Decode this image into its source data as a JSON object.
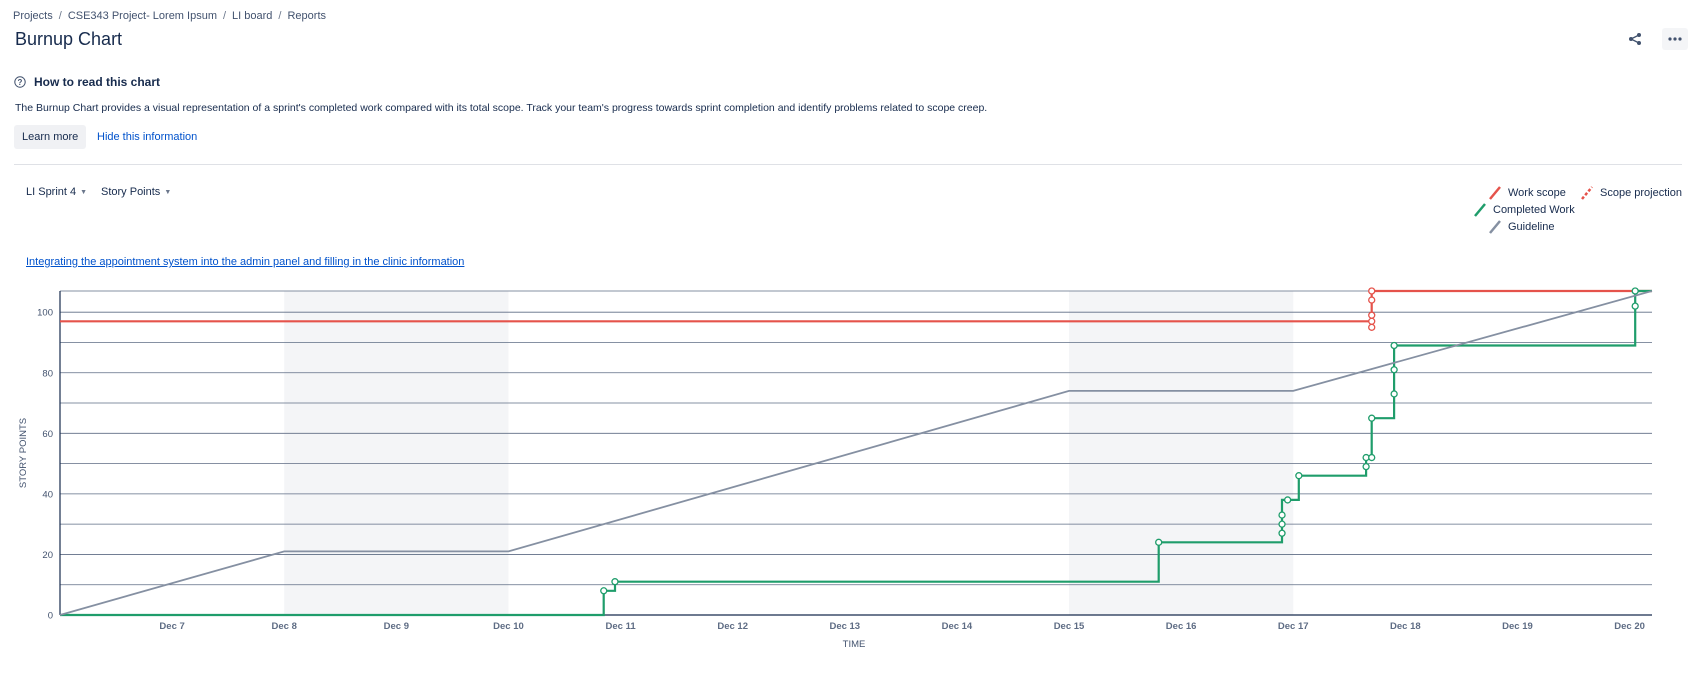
{
  "breadcrumb": [
    "Projects",
    "CSE343 Project- Lorem Ipsum",
    "LI board",
    "Reports"
  ],
  "page_title": "Burnup Chart",
  "info": {
    "heading": "How to read this chart",
    "text": "The Burnup Chart provides a visual representation of a sprint's completed work compared with its total scope. Track your team's progress towards sprint completion and identify problems related to scope creep.",
    "learn_more": "Learn more",
    "hide": "Hide this information"
  },
  "filters": {
    "sprint": "LI Sprint 4",
    "estimation": "Story Points"
  },
  "sprint_goal": "Integrating the appointment system into the admin panel and filling in the clinic information",
  "legend": {
    "work_scope": "Work scope",
    "scope_projection": "Scope projection",
    "completed_work": "Completed Work",
    "guideline": "Guideline"
  },
  "colors": {
    "work_scope": "#e5534b",
    "completed_work": "#1f9d6b",
    "guideline": "#8590a2",
    "link": "#0052cc"
  },
  "chart_data": {
    "type": "line",
    "xlabel": "TIME",
    "ylabel": "STORY POINTS",
    "x_range": [
      "Dec 6",
      "Dec 20.2"
    ],
    "ylim": [
      0,
      107
    ],
    "x_ticks": [
      "Dec 7",
      "Dec 8",
      "Dec 9",
      "Dec 10",
      "Dec 11",
      "Dec 12",
      "Dec 13",
      "Dec 14",
      "Dec 15",
      "Dec 16",
      "Dec 17",
      "Dec 18",
      "Dec 19",
      "Dec 20"
    ],
    "y_ticks": [
      0,
      20,
      40,
      60,
      80,
      100
    ],
    "grid": true,
    "legend_position": "top-right",
    "weekend_bands": [
      [
        "Dec 8",
        "Dec 10"
      ],
      [
        "Dec 15",
        "Dec 17"
      ]
    ],
    "series": [
      {
        "name": "Work scope",
        "points": [
          [
            "Dec 6",
            97
          ],
          [
            "Dec 17.7",
            97
          ],
          [
            "Dec 17.7",
            107
          ],
          [
            "Dec 20.2",
            107
          ]
        ],
        "markers": [
          [
            "Dec 17.7",
            95
          ],
          [
            "Dec 17.7",
            97
          ],
          [
            "Dec 17.7",
            99
          ],
          [
            "Dec 17.7",
            104
          ],
          [
            "Dec 17.7",
            107
          ]
        ]
      },
      {
        "name": "Completed Work",
        "points": [
          [
            "Dec 6",
            0
          ],
          [
            "Dec 10.85",
            0
          ],
          [
            "Dec 10.85",
            8
          ],
          [
            "Dec 10.95",
            8
          ],
          [
            "Dec 10.95",
            11
          ],
          [
            "Dec 15.8",
            11
          ],
          [
            "Dec 15.8",
            24
          ],
          [
            "Dec 16.9",
            24
          ],
          [
            "Dec 16.9",
            38
          ],
          [
            "Dec 17.05",
            38
          ],
          [
            "Dec 17.05",
            46
          ],
          [
            "Dec 17.65",
            46
          ],
          [
            "Dec 17.65",
            52
          ],
          [
            "Dec 17.7",
            52
          ],
          [
            "Dec 17.7",
            65
          ],
          [
            "Dec 17.9",
            65
          ],
          [
            "Dec 17.9",
            89
          ],
          [
            "Dec 20.05",
            89
          ],
          [
            "Dec 20.05",
            107
          ],
          [
            "Dec 20.2",
            107
          ]
        ],
        "markers": [
          [
            "Dec 10.85",
            8
          ],
          [
            "Dec 10.95",
            11
          ],
          [
            "Dec 15.8",
            24
          ],
          [
            "Dec 16.9",
            27
          ],
          [
            "Dec 16.9",
            30
          ],
          [
            "Dec 16.9",
            33
          ],
          [
            "Dec 16.95",
            38
          ],
          [
            "Dec 17.05",
            46
          ],
          [
            "Dec 17.65",
            49
          ],
          [
            "Dec 17.65",
            52
          ],
          [
            "Dec 17.7",
            52
          ],
          [
            "Dec 17.7",
            65
          ],
          [
            "Dec 17.9",
            73
          ],
          [
            "Dec 17.9",
            81
          ],
          [
            "Dec 17.9",
            89
          ],
          [
            "Dec 20.05",
            102
          ],
          [
            "Dec 20.05",
            107
          ]
        ]
      },
      {
        "name": "Guideline",
        "points": [
          [
            "Dec 6",
            0
          ],
          [
            "Dec 8",
            21
          ],
          [
            "Dec 10",
            21
          ],
          [
            "Dec 15",
            74
          ],
          [
            "Dec 17",
            74
          ],
          [
            "Dec 20.2",
            107
          ]
        ]
      }
    ]
  }
}
